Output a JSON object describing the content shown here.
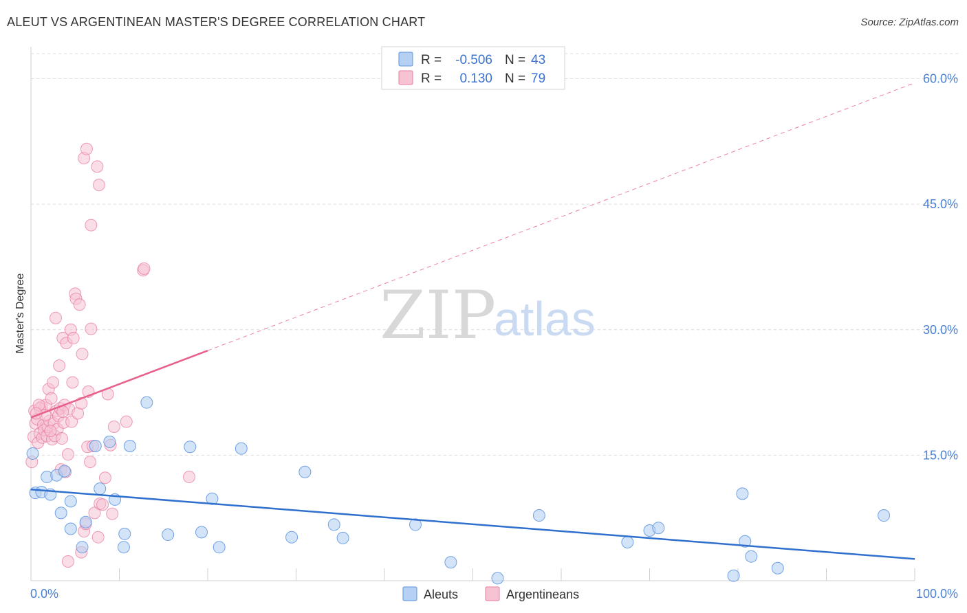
{
  "title": "ALEUT VS ARGENTINEAN MASTER'S DEGREE CORRELATION CHART",
  "source": "Source: ZipAtlas.com",
  "watermark": {
    "zip": "ZIP",
    "atlas": "atlas"
  },
  "colors": {
    "aleut": "#5b93e0",
    "aleut_fill": "#b5d0f3",
    "aleut_line": "#2f6fce",
    "argentine": "#e87ba0",
    "argentine_fill": "#f6c3d3",
    "argentine_line": "#e8618b",
    "tick": "#4a7fd4",
    "grid": "#dcdcdc"
  },
  "legend": {
    "rows": [
      {
        "r_label": "R =",
        "r_value": "-0.506",
        "n_label": "N =",
        "n_value": "43"
      },
      {
        "r_label": "R =",
        "r_value": "0.130",
        "n_label": "N =",
        "n_value": "79"
      }
    ]
  },
  "bottom_legend": {
    "aleut": "Aleuts",
    "argentine": "Argentineans"
  },
  "chart_data": {
    "type": "scatter",
    "title": "ALEUT VS ARGENTINEAN MASTER'S DEGREE CORRELATION CHART",
    "xlabel": "",
    "ylabel": "Master's Degree",
    "xlim": [
      0,
      100
    ],
    "ylim": [
      0,
      63
    ],
    "x_tick_labels": [
      "0.0%",
      "100.0%"
    ],
    "y_ticks": [
      15,
      30,
      45,
      60
    ],
    "y_tick_labels": [
      "15.0%",
      "30.0%",
      "45.0%",
      "60.0%"
    ],
    "grid": true,
    "series": [
      {
        "name": "Aleuts",
        "r": -0.506,
        "n": 43,
        "trend": {
          "x0": 0,
          "y0": 10.9,
          "x1": 100,
          "y1": 2.6
        },
        "points": [
          [
            0.2,
            15.2
          ],
          [
            0.5,
            10.5
          ],
          [
            1.2,
            10.6
          ],
          [
            1.8,
            12.4
          ],
          [
            2.2,
            10.3
          ],
          [
            2.9,
            12.6
          ],
          [
            3.4,
            8.1
          ],
          [
            3.8,
            13.1
          ],
          [
            4.5,
            9.5
          ],
          [
            4.5,
            6.2
          ],
          [
            5.8,
            4.0
          ],
          [
            6.2,
            7.0
          ],
          [
            7.3,
            16.1
          ],
          [
            7.8,
            11.0
          ],
          [
            8.9,
            16.6
          ],
          [
            9.5,
            9.7
          ],
          [
            10.5,
            4.0
          ],
          [
            10.6,
            5.6
          ],
          [
            11.2,
            16.1
          ],
          [
            13.1,
            21.3
          ],
          [
            15.5,
            5.5
          ],
          [
            18.0,
            16.0
          ],
          [
            19.3,
            5.8
          ],
          [
            20.5,
            9.8
          ],
          [
            21.3,
            4.0
          ],
          [
            23.8,
            15.8
          ],
          [
            29.5,
            5.2
          ],
          [
            31.0,
            13.0
          ],
          [
            34.3,
            6.7
          ],
          [
            35.3,
            5.1
          ],
          [
            43.5,
            6.7
          ],
          [
            47.5,
            2.2
          ],
          [
            52.8,
            0.3
          ],
          [
            57.5,
            7.8
          ],
          [
            67.5,
            4.6
          ],
          [
            70.0,
            6.0
          ],
          [
            71.0,
            6.3
          ],
          [
            79.5,
            0.6
          ],
          [
            80.5,
            10.4
          ],
          [
            80.8,
            4.7
          ],
          [
            81.5,
            2.9
          ],
          [
            84.5,
            1.5
          ],
          [
            96.5,
            7.8
          ]
        ]
      },
      {
        "name": "Argentineans",
        "r": 0.13,
        "n": 79,
        "trend": {
          "x0": 0,
          "y0": 19.5,
          "x1": 20,
          "y1": 27.5,
          "extend_to_x": 100,
          "extend_to_y": 59.5
        },
        "points": [
          [
            0.1,
            14.2
          ],
          [
            0.3,
            17.2
          ],
          [
            0.4,
            20.3
          ],
          [
            0.5,
            18.8
          ],
          [
            0.7,
            19.3
          ],
          [
            0.8,
            16.5
          ],
          [
            1.0,
            17.6
          ],
          [
            1.2,
            20.8
          ],
          [
            1.3,
            17.1
          ],
          [
            1.4,
            18.6
          ],
          [
            1.5,
            18.0
          ],
          [
            1.7,
            21.0
          ],
          [
            1.8,
            17.3
          ],
          [
            1.9,
            18.4
          ],
          [
            2.0,
            22.9
          ],
          [
            2.1,
            19.1
          ],
          [
            2.3,
            21.8
          ],
          [
            2.4,
            16.9
          ],
          [
            2.5,
            23.7
          ],
          [
            2.6,
            18.8
          ],
          [
            2.7,
            17.3
          ],
          [
            2.8,
            31.4
          ],
          [
            2.9,
            20.3
          ],
          [
            3.0,
            18.1
          ],
          [
            3.1,
            19.7
          ],
          [
            3.2,
            25.7
          ],
          [
            3.3,
            20.6
          ],
          [
            3.4,
            13.3
          ],
          [
            3.5,
            17.0
          ],
          [
            3.6,
            29.0
          ],
          [
            3.7,
            18.9
          ],
          [
            3.8,
            21.0
          ],
          [
            3.9,
            13.0
          ],
          [
            4.0,
            28.4
          ],
          [
            4.2,
            15.1
          ],
          [
            4.3,
            20.5
          ],
          [
            4.5,
            30.0
          ],
          [
            4.6,
            19.0
          ],
          [
            4.7,
            23.7
          ],
          [
            4.8,
            29.0
          ],
          [
            5.0,
            34.3
          ],
          [
            5.1,
            33.7
          ],
          [
            5.3,
            20.0
          ],
          [
            5.5,
            33.0
          ],
          [
            5.7,
            21.2
          ],
          [
            5.8,
            27.1
          ],
          [
            6.0,
            5.9
          ],
          [
            6.2,
            6.8
          ],
          [
            6.4,
            16.0
          ],
          [
            6.5,
            22.6
          ],
          [
            6.7,
            14.2
          ],
          [
            6.8,
            30.1
          ],
          [
            7.0,
            16.1
          ],
          [
            7.2,
            8.1
          ],
          [
            7.6,
            5.2
          ],
          [
            7.8,
            9.2
          ],
          [
            8.1,
            9.1
          ],
          [
            8.4,
            12.3
          ],
          [
            8.7,
            22.3
          ],
          [
            9.0,
            16.2
          ],
          [
            9.2,
            8.0
          ],
          [
            9.4,
            18.4
          ],
          [
            10.8,
            19.0
          ],
          [
            12.7,
            37.1
          ],
          [
            12.8,
            37.3
          ],
          [
            17.9,
            12.4
          ],
          [
            6.0,
            50.5
          ],
          [
            6.3,
            51.6
          ],
          [
            7.5,
            49.5
          ],
          [
            7.7,
            47.3
          ],
          [
            6.8,
            42.5
          ],
          [
            4.2,
            2.3
          ],
          [
            5.7,
            3.4
          ],
          [
            1.0,
            20.6
          ],
          [
            0.9,
            21.0
          ],
          [
            2.2,
            17.9
          ],
          [
            3.6,
            20.2
          ],
          [
            1.6,
            19.8
          ],
          [
            0.6,
            20.0
          ]
        ]
      }
    ]
  }
}
